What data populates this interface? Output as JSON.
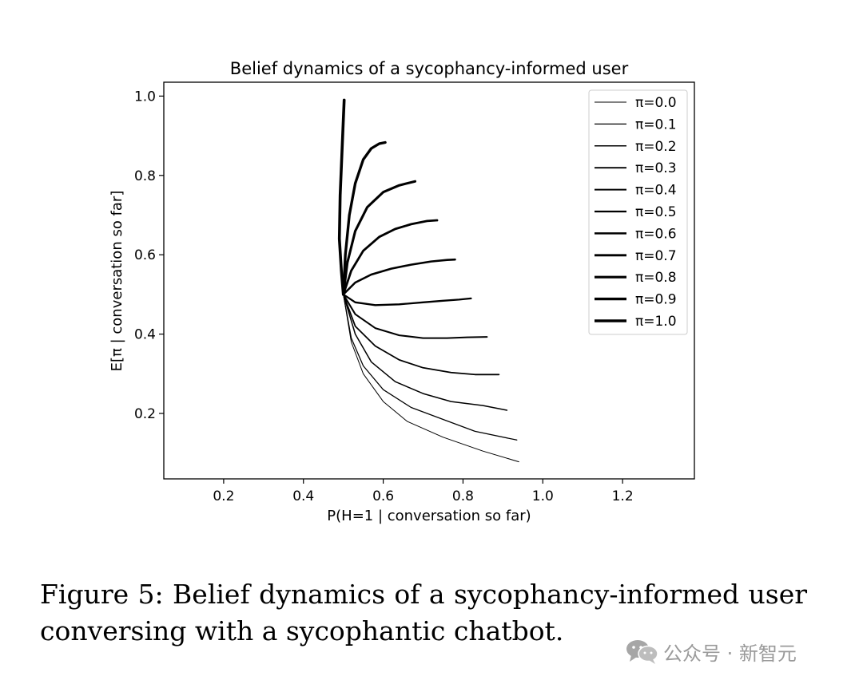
{
  "chart_data": {
    "type": "line",
    "title": "Belief dynamics of a sycophancy-informed user",
    "xlabel": "P(H=1 | conversation so far)",
    "ylabel": "E[π | conversation so far]",
    "xlim": [
      0.05,
      1.38
    ],
    "ylim": [
      0.035,
      1.035
    ],
    "xticks": [
      0.2,
      0.4,
      0.6,
      0.8,
      1.0,
      1.2
    ],
    "xtick_labels": [
      "0.2",
      "0.4",
      "0.6",
      "0.8",
      "1.0",
      "1.2"
    ],
    "yticks": [
      0.2,
      0.4,
      0.6,
      0.8,
      1.0
    ],
    "ytick_labels": [
      "0.2",
      "0.4",
      "0.6",
      "0.8",
      "1.0"
    ],
    "grid": false,
    "legend_position": "top-right",
    "series": [
      {
        "name": "π=0.0",
        "points": [
          [
            0.5,
            0.5
          ],
          [
            0.52,
            0.38
          ],
          [
            0.55,
            0.3
          ],
          [
            0.6,
            0.23
          ],
          [
            0.66,
            0.18
          ],
          [
            0.75,
            0.14
          ],
          [
            0.85,
            0.105
          ],
          [
            0.94,
            0.078
          ]
        ]
      },
      {
        "name": "π=0.1",
        "points": [
          [
            0.5,
            0.5
          ],
          [
            0.52,
            0.39
          ],
          [
            0.55,
            0.32
          ],
          [
            0.6,
            0.26
          ],
          [
            0.67,
            0.215
          ],
          [
            0.75,
            0.185
          ],
          [
            0.83,
            0.155
          ],
          [
            0.935,
            0.133
          ]
        ]
      },
      {
        "name": "π=0.2",
        "points": [
          [
            0.5,
            0.5
          ],
          [
            0.53,
            0.4
          ],
          [
            0.57,
            0.33
          ],
          [
            0.63,
            0.28
          ],
          [
            0.7,
            0.25
          ],
          [
            0.77,
            0.23
          ],
          [
            0.85,
            0.22
          ],
          [
            0.91,
            0.208
          ]
        ]
      },
      {
        "name": "π=0.3",
        "points": [
          [
            0.5,
            0.5
          ],
          [
            0.53,
            0.42
          ],
          [
            0.58,
            0.37
          ],
          [
            0.64,
            0.335
          ],
          [
            0.7,
            0.315
          ],
          [
            0.77,
            0.303
          ],
          [
            0.83,
            0.298
          ],
          [
            0.89,
            0.298
          ]
        ]
      },
      {
        "name": "π=0.4",
        "points": [
          [
            0.5,
            0.5
          ],
          [
            0.53,
            0.45
          ],
          [
            0.58,
            0.415
          ],
          [
            0.64,
            0.397
          ],
          [
            0.7,
            0.39
          ],
          [
            0.76,
            0.39
          ],
          [
            0.81,
            0.392
          ],
          [
            0.86,
            0.393
          ]
        ]
      },
      {
        "name": "π=0.5",
        "points": [
          [
            0.5,
            0.5
          ],
          [
            0.53,
            0.48
          ],
          [
            0.58,
            0.473
          ],
          [
            0.64,
            0.475
          ],
          [
            0.7,
            0.48
          ],
          [
            0.75,
            0.484
          ],
          [
            0.79,
            0.487
          ],
          [
            0.82,
            0.49
          ]
        ]
      },
      {
        "name": "π=0.6",
        "points": [
          [
            0.5,
            0.5
          ],
          [
            0.53,
            0.53
          ],
          [
            0.57,
            0.55
          ],
          [
            0.62,
            0.565
          ],
          [
            0.67,
            0.575
          ],
          [
            0.72,
            0.583
          ],
          [
            0.76,
            0.587
          ],
          [
            0.78,
            0.588
          ]
        ]
      },
      {
        "name": "π=0.7",
        "points": [
          [
            0.5,
            0.5
          ],
          [
            0.52,
            0.56
          ],
          [
            0.55,
            0.61
          ],
          [
            0.59,
            0.645
          ],
          [
            0.63,
            0.665
          ],
          [
            0.67,
            0.677
          ],
          [
            0.71,
            0.685
          ],
          [
            0.735,
            0.687
          ]
        ]
      },
      {
        "name": "π=0.8",
        "points": [
          [
            0.5,
            0.5
          ],
          [
            0.51,
            0.58
          ],
          [
            0.53,
            0.66
          ],
          [
            0.56,
            0.72
          ],
          [
            0.6,
            0.758
          ],
          [
            0.64,
            0.775
          ],
          [
            0.68,
            0.785
          ]
        ]
      },
      {
        "name": "π=0.9",
        "points": [
          [
            0.5,
            0.5
          ],
          [
            0.505,
            0.6
          ],
          [
            0.515,
            0.7
          ],
          [
            0.53,
            0.78
          ],
          [
            0.55,
            0.84
          ],
          [
            0.57,
            0.868
          ],
          [
            0.59,
            0.88
          ],
          [
            0.605,
            0.883
          ]
        ]
      },
      {
        "name": "π=1.0",
        "points": [
          [
            0.5,
            0.5
          ],
          [
            0.495,
            0.56
          ],
          [
            0.49,
            0.64
          ],
          [
            0.492,
            0.75
          ],
          [
            0.497,
            0.87
          ],
          [
            0.502,
            0.99
          ]
        ]
      }
    ]
  },
  "caption": {
    "text": "Figure 5:  Belief dynamics of a sycophancy-informed user conversing with a sycophantic chatbot."
  },
  "watermark": {
    "icon": "wechat-icon",
    "text": "公众号 · 新智元"
  }
}
